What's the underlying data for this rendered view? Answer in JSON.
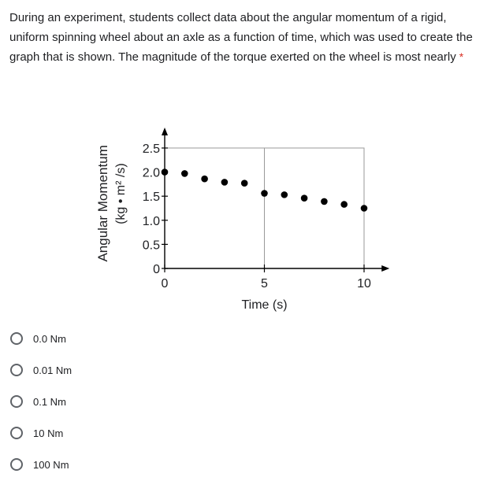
{
  "question": {
    "text": "During an experiment, students collect data about the angular momentum of a rigid, uniform spinning wheel about an axle as a function of time, which was used to create the graph that is shown. The magnitude of the torque exerted on the wheel is most nearly",
    "required_marker": "*"
  },
  "options": [
    {
      "label": "0.0 Nm"
    },
    {
      "label": "0.01 Nm"
    },
    {
      "label": "0.1 Nm"
    },
    {
      "label": "10 Nm"
    },
    {
      "label": "100 Nm"
    }
  ],
  "chart_data": {
    "type": "scatter",
    "ylabel": "Angular Momentum",
    "ylabel_units": "(kg • m² /s)",
    "xlabel": "Time (s)",
    "x_ticks": [
      "0",
      "5",
      "10"
    ],
    "y_ticks": [
      "0",
      "0.5",
      "1.0",
      "1.5",
      "2.0",
      "2.5"
    ],
    "xlim": [
      0,
      10.8
    ],
    "ylim": [
      0,
      2.5
    ],
    "grid": true,
    "points": [
      {
        "x": 0,
        "y": 2.0
      },
      {
        "x": 1,
        "y": 1.97
      },
      {
        "x": 2,
        "y": 1.86
      },
      {
        "x": 3,
        "y": 1.79
      },
      {
        "x": 4,
        "y": 1.77
      },
      {
        "x": 5,
        "y": 1.56
      },
      {
        "x": 6,
        "y": 1.53
      },
      {
        "x": 7,
        "y": 1.46
      },
      {
        "x": 8,
        "y": 1.39
      },
      {
        "x": 9,
        "y": 1.33
      },
      {
        "x": 10,
        "y": 1.25
      }
    ],
    "marker_color": "#000000"
  }
}
